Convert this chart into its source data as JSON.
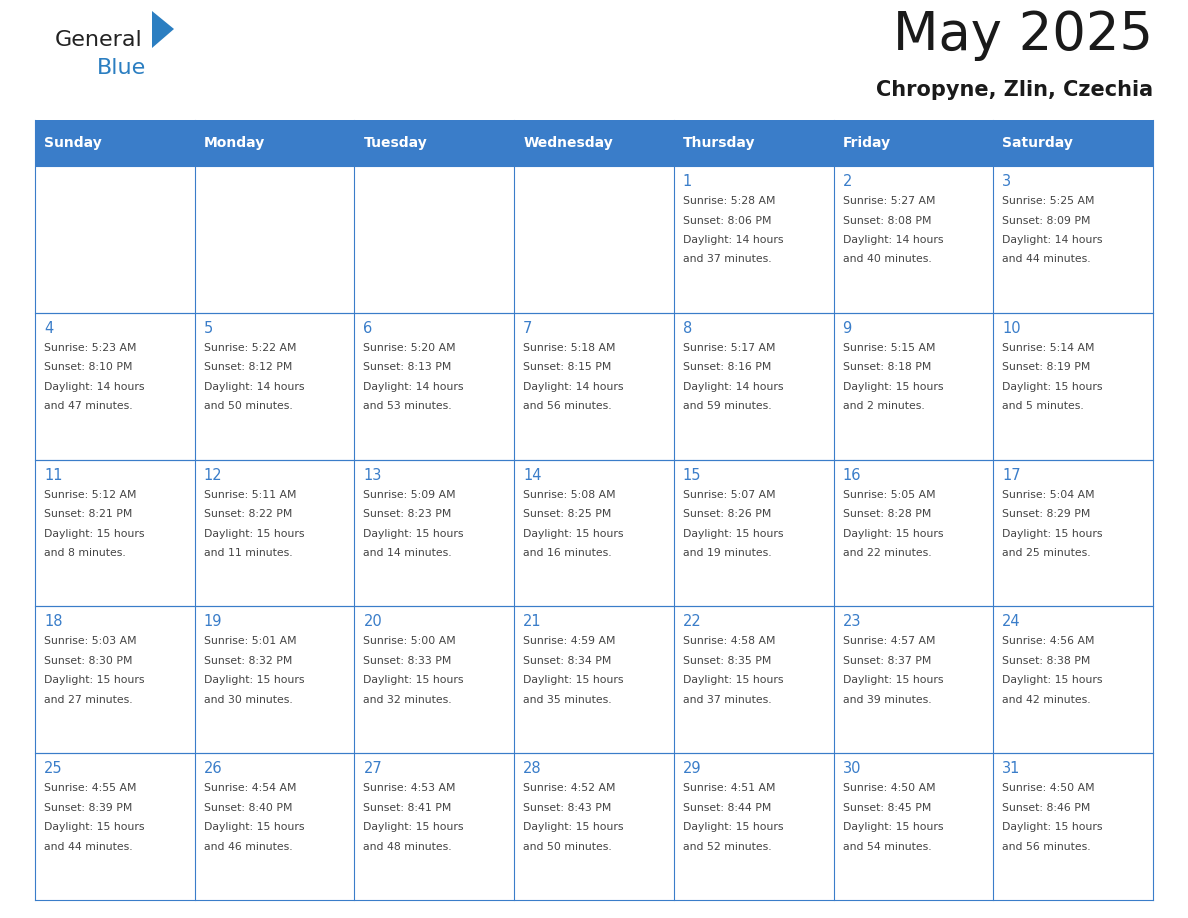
{
  "title": "May 2025",
  "subtitle": "Chropyne, Zlin, Czechia",
  "days_of_week": [
    "Sunday",
    "Monday",
    "Tuesday",
    "Wednesday",
    "Thursday",
    "Friday",
    "Saturday"
  ],
  "header_bg": "#3A7DC9",
  "header_text": "#FFFFFF",
  "cell_bg": "#FFFFFF",
  "border_color": "#3A7DC9",
  "day_number_color": "#3A7DC9",
  "text_color": "#444444",
  "logo_general_color": "#222222",
  "logo_blue_color": "#2B7EC1",
  "logo_triangle_color": "#2B7EC1",
  "title_color": "#1a1a1a",
  "subtitle_color": "#1a1a1a",
  "calendar_data": [
    [
      {
        "day": "",
        "sunrise": "",
        "sunset": "",
        "daylight": ""
      },
      {
        "day": "",
        "sunrise": "",
        "sunset": "",
        "daylight": ""
      },
      {
        "day": "",
        "sunrise": "",
        "sunset": "",
        "daylight": ""
      },
      {
        "day": "",
        "sunrise": "",
        "sunset": "",
        "daylight": ""
      },
      {
        "day": "1",
        "sunrise": "5:28 AM",
        "sunset": "8:06 PM",
        "daylight": "14 hours and 37 minutes."
      },
      {
        "day": "2",
        "sunrise": "5:27 AM",
        "sunset": "8:08 PM",
        "daylight": "14 hours and 40 minutes."
      },
      {
        "day": "3",
        "sunrise": "5:25 AM",
        "sunset": "8:09 PM",
        "daylight": "14 hours and 44 minutes."
      }
    ],
    [
      {
        "day": "4",
        "sunrise": "5:23 AM",
        "sunset": "8:10 PM",
        "daylight": "14 hours and 47 minutes."
      },
      {
        "day": "5",
        "sunrise": "5:22 AM",
        "sunset": "8:12 PM",
        "daylight": "14 hours and 50 minutes."
      },
      {
        "day": "6",
        "sunrise": "5:20 AM",
        "sunset": "8:13 PM",
        "daylight": "14 hours and 53 minutes."
      },
      {
        "day": "7",
        "sunrise": "5:18 AM",
        "sunset": "8:15 PM",
        "daylight": "14 hours and 56 minutes."
      },
      {
        "day": "8",
        "sunrise": "5:17 AM",
        "sunset": "8:16 PM",
        "daylight": "14 hours and 59 minutes."
      },
      {
        "day": "9",
        "sunrise": "5:15 AM",
        "sunset": "8:18 PM",
        "daylight": "15 hours and 2 minutes."
      },
      {
        "day": "10",
        "sunrise": "5:14 AM",
        "sunset": "8:19 PM",
        "daylight": "15 hours and 5 minutes."
      }
    ],
    [
      {
        "day": "11",
        "sunrise": "5:12 AM",
        "sunset": "8:21 PM",
        "daylight": "15 hours and 8 minutes."
      },
      {
        "day": "12",
        "sunrise": "5:11 AM",
        "sunset": "8:22 PM",
        "daylight": "15 hours and 11 minutes."
      },
      {
        "day": "13",
        "sunrise": "5:09 AM",
        "sunset": "8:23 PM",
        "daylight": "15 hours and 14 minutes."
      },
      {
        "day": "14",
        "sunrise": "5:08 AM",
        "sunset": "8:25 PM",
        "daylight": "15 hours and 16 minutes."
      },
      {
        "day": "15",
        "sunrise": "5:07 AM",
        "sunset": "8:26 PM",
        "daylight": "15 hours and 19 minutes."
      },
      {
        "day": "16",
        "sunrise": "5:05 AM",
        "sunset": "8:28 PM",
        "daylight": "15 hours and 22 minutes."
      },
      {
        "day": "17",
        "sunrise": "5:04 AM",
        "sunset": "8:29 PM",
        "daylight": "15 hours and 25 minutes."
      }
    ],
    [
      {
        "day": "18",
        "sunrise": "5:03 AM",
        "sunset": "8:30 PM",
        "daylight": "15 hours and 27 minutes."
      },
      {
        "day": "19",
        "sunrise": "5:01 AM",
        "sunset": "8:32 PM",
        "daylight": "15 hours and 30 minutes."
      },
      {
        "day": "20",
        "sunrise": "5:00 AM",
        "sunset": "8:33 PM",
        "daylight": "15 hours and 32 minutes."
      },
      {
        "day": "21",
        "sunrise": "4:59 AM",
        "sunset": "8:34 PM",
        "daylight": "15 hours and 35 minutes."
      },
      {
        "day": "22",
        "sunrise": "4:58 AM",
        "sunset": "8:35 PM",
        "daylight": "15 hours and 37 minutes."
      },
      {
        "day": "23",
        "sunrise": "4:57 AM",
        "sunset": "8:37 PM",
        "daylight": "15 hours and 39 minutes."
      },
      {
        "day": "24",
        "sunrise": "4:56 AM",
        "sunset": "8:38 PM",
        "daylight": "15 hours and 42 minutes."
      }
    ],
    [
      {
        "day": "25",
        "sunrise": "4:55 AM",
        "sunset": "8:39 PM",
        "daylight": "15 hours and 44 minutes."
      },
      {
        "day": "26",
        "sunrise": "4:54 AM",
        "sunset": "8:40 PM",
        "daylight": "15 hours and 46 minutes."
      },
      {
        "day": "27",
        "sunrise": "4:53 AM",
        "sunset": "8:41 PM",
        "daylight": "15 hours and 48 minutes."
      },
      {
        "day": "28",
        "sunrise": "4:52 AM",
        "sunset": "8:43 PM",
        "daylight": "15 hours and 50 minutes."
      },
      {
        "day": "29",
        "sunrise": "4:51 AM",
        "sunset": "8:44 PM",
        "daylight": "15 hours and 52 minutes."
      },
      {
        "day": "30",
        "sunrise": "4:50 AM",
        "sunset": "8:45 PM",
        "daylight": "15 hours and 54 minutes."
      },
      {
        "day": "31",
        "sunrise": "4:50 AM",
        "sunset": "8:46 PM",
        "daylight": "15 hours and 56 minutes."
      }
    ]
  ]
}
